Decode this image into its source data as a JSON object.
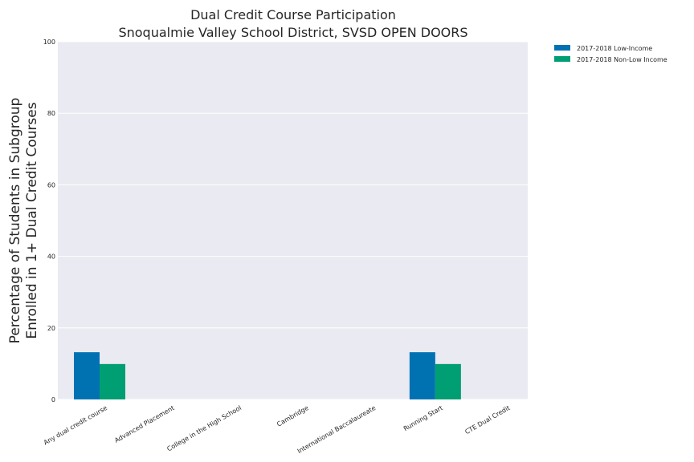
{
  "chart_data": {
    "type": "bar",
    "title": "Dual Credit Course Participation",
    "subtitle": "Snoqualmie Valley School District, SVSD OPEN DOORS",
    "xlabel": "",
    "ylabel_line1": "Percentage of Students in Subgroup",
    "ylabel_line2": "Enrolled in 1+ Dual Credit Courses",
    "ylim": [
      0,
      100
    ],
    "yticks": [
      0,
      20,
      40,
      60,
      80,
      100
    ],
    "grid": true,
    "legend_position": "outside-top-right",
    "categories": [
      "Any dual credit course",
      "Advanced Placement",
      "College in the High School",
      "Cambridge",
      "International Baccalaureate",
      "Running Start",
      "CTE Dual Credit"
    ],
    "series": [
      {
        "name": "2017-2018 Low-Income",
        "color": "#0072b2",
        "values": [
          13.2,
          0,
          0,
          0,
          0,
          13.2,
          0
        ]
      },
      {
        "name": "2017-2018 Non-Low Income",
        "color": "#009e73",
        "values": [
          9.9,
          0,
          0,
          0,
          0,
          9.9,
          0
        ]
      }
    ],
    "plot_background": "#eaeaf2",
    "grid_color": "#ffffff"
  }
}
